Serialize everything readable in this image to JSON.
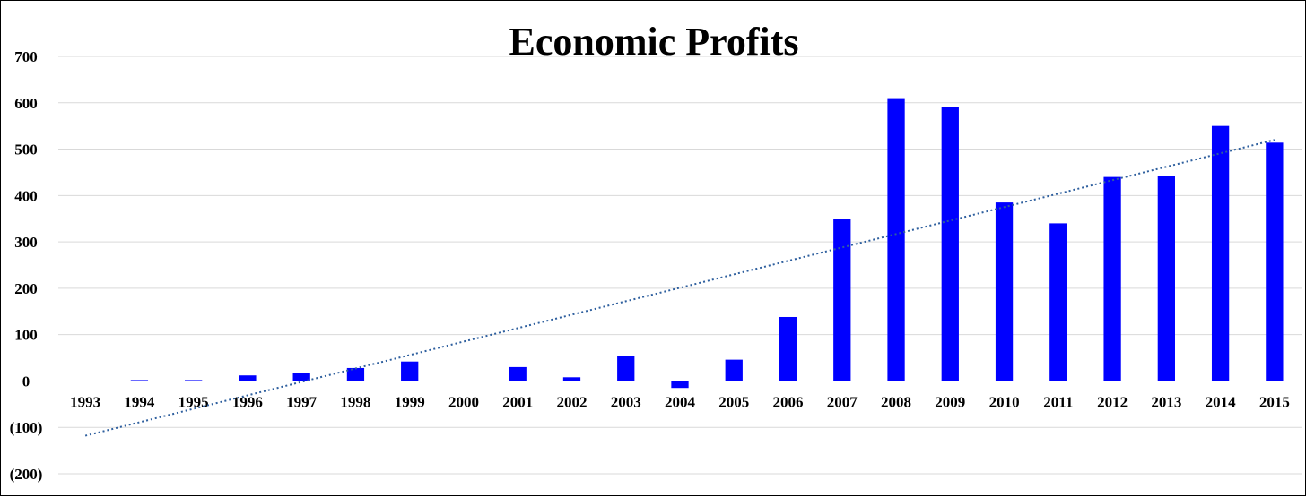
{
  "chart_data": {
    "type": "bar",
    "title": "Economic Profits",
    "xlabel": "",
    "ylabel": "",
    "categories": [
      "1993",
      "1994",
      "1995",
      "1996",
      "1997",
      "1998",
      "1999",
      "2000",
      "2001",
      "2002",
      "2003",
      "2004",
      "2005",
      "2006",
      "2007",
      "2008",
      "2009",
      "2010",
      "2011",
      "2012",
      "2013",
      "2014",
      "2015"
    ],
    "values": [
      0,
      2,
      2,
      12,
      17,
      28,
      42,
      0,
      30,
      8,
      53,
      -15,
      46,
      138,
      350,
      610,
      590,
      385,
      340,
      440,
      442,
      550,
      514
    ],
    "ylim": [
      -200,
      700
    ],
    "yticks": [
      -200,
      -100,
      0,
      100,
      200,
      300,
      400,
      500,
      600,
      700
    ],
    "ytick_labels": [
      "(200)",
      "(100)",
      "0",
      "100",
      "200",
      "300",
      "400",
      "500",
      "600",
      "700"
    ],
    "grid": true,
    "bar_color": "#0000ff",
    "trendline": {
      "type": "linear",
      "style": "dotted",
      "color": "#2e5f9e",
      "start_value": -118,
      "end_value": 520
    }
  }
}
